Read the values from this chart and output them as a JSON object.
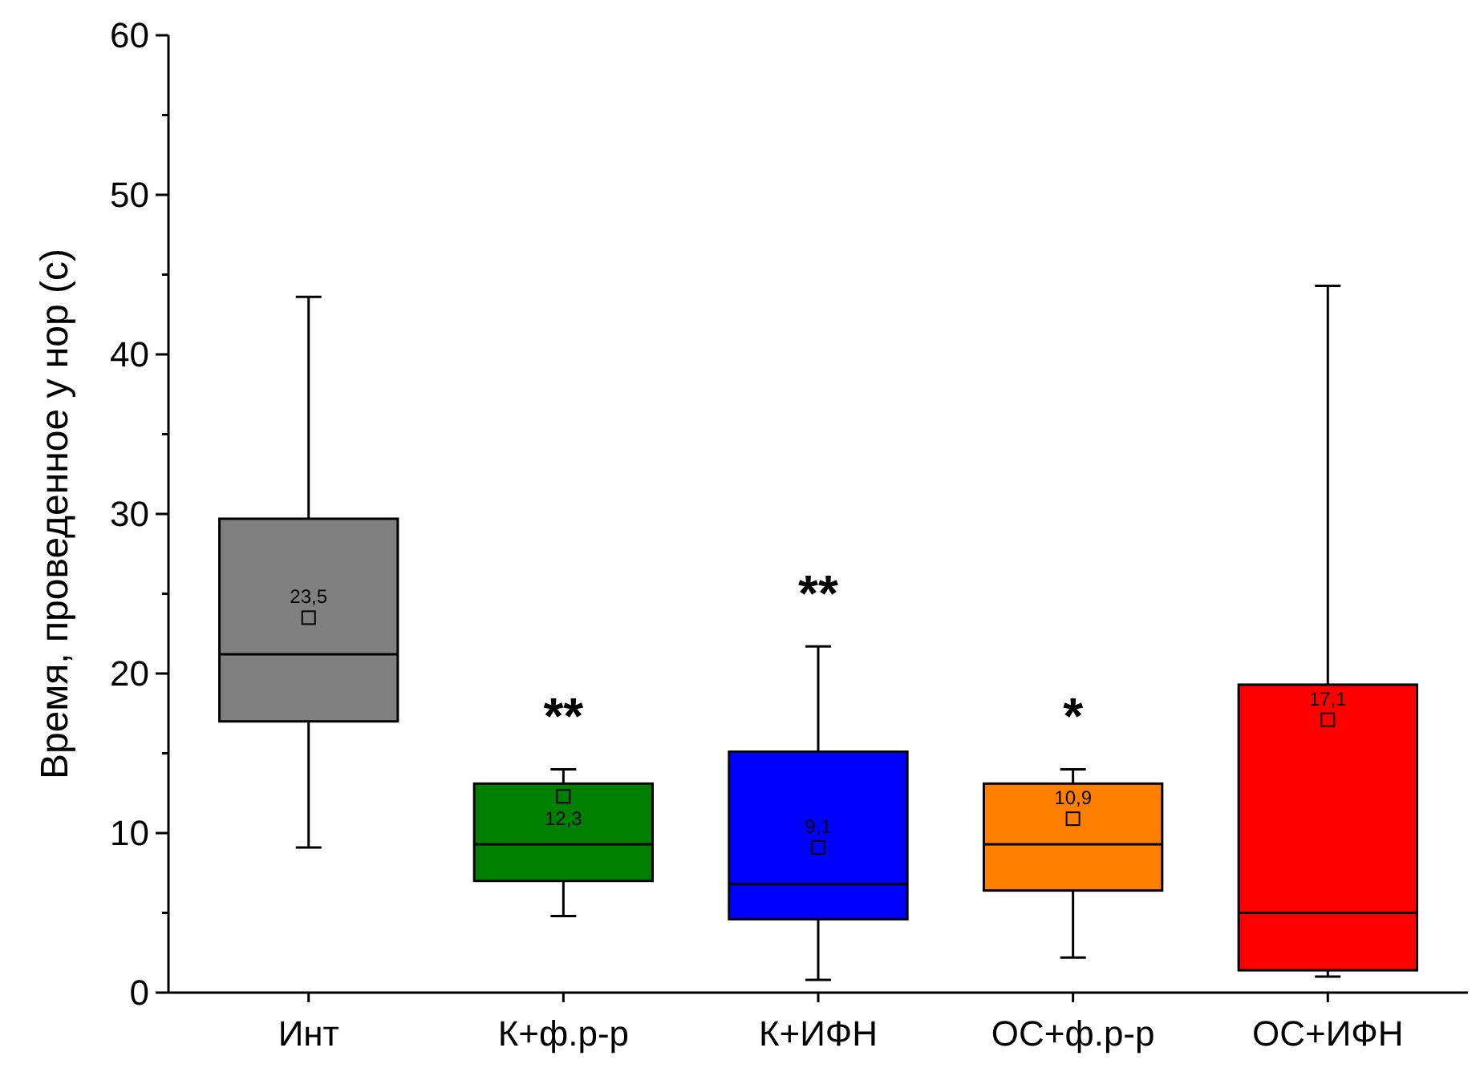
{
  "chart_data": {
    "type": "box",
    "ylabel": "Время, проведенное у нор (с)",
    "categories": [
      "Инт",
      "К+ф.р-р",
      "К+ИФН",
      "ОС+ф.р-р",
      "ОС+ИФН"
    ],
    "colors": [
      "#808080",
      "#008000",
      "#0000ff",
      "#ff8000",
      "#ff0000"
    ],
    "boxes": [
      {
        "low": 9.1,
        "q1": 17.0,
        "median": 21.2,
        "q3": 29.7,
        "high": 43.6,
        "mean": 23.5
      },
      {
        "low": 4.8,
        "q1": 7.0,
        "median": 9.3,
        "q3": 13.1,
        "high": 14.0,
        "mean": 12.3
      },
      {
        "low": 0.8,
        "q1": 4.6,
        "median": 6.8,
        "q3": 15.1,
        "high": 21.7,
        "mean": 9.1
      },
      {
        "low": 2.2,
        "q1": 6.4,
        "median": 9.3,
        "q3": 13.1,
        "high": 14.0,
        "mean": 10.9
      },
      {
        "low": 1.0,
        "q1": 1.4,
        "median": 5.0,
        "q3": 19.3,
        "high": 44.3,
        "mean": 17.1
      }
    ],
    "ylim": [
      0,
      60
    ],
    "yticks": [
      0,
      {
        "value": 5,
        "label": null
      },
      10,
      {
        "value": 15,
        "label": null
      },
      20,
      {
        "value": 25,
        "label": null
      },
      30,
      {
        "value": 35,
        "label": null
      },
      40,
      {
        "value": 45,
        "label": null
      },
      50,
      {
        "value": 55,
        "label": null
      },
      60
    ],
    "marker": "square",
    "value_labels": [
      "23,5",
      "12,3",
      "9,1",
      "10,9",
      "17,1"
    ],
    "annotations": [
      "**",
      "**",
      "*"
    ]
  }
}
